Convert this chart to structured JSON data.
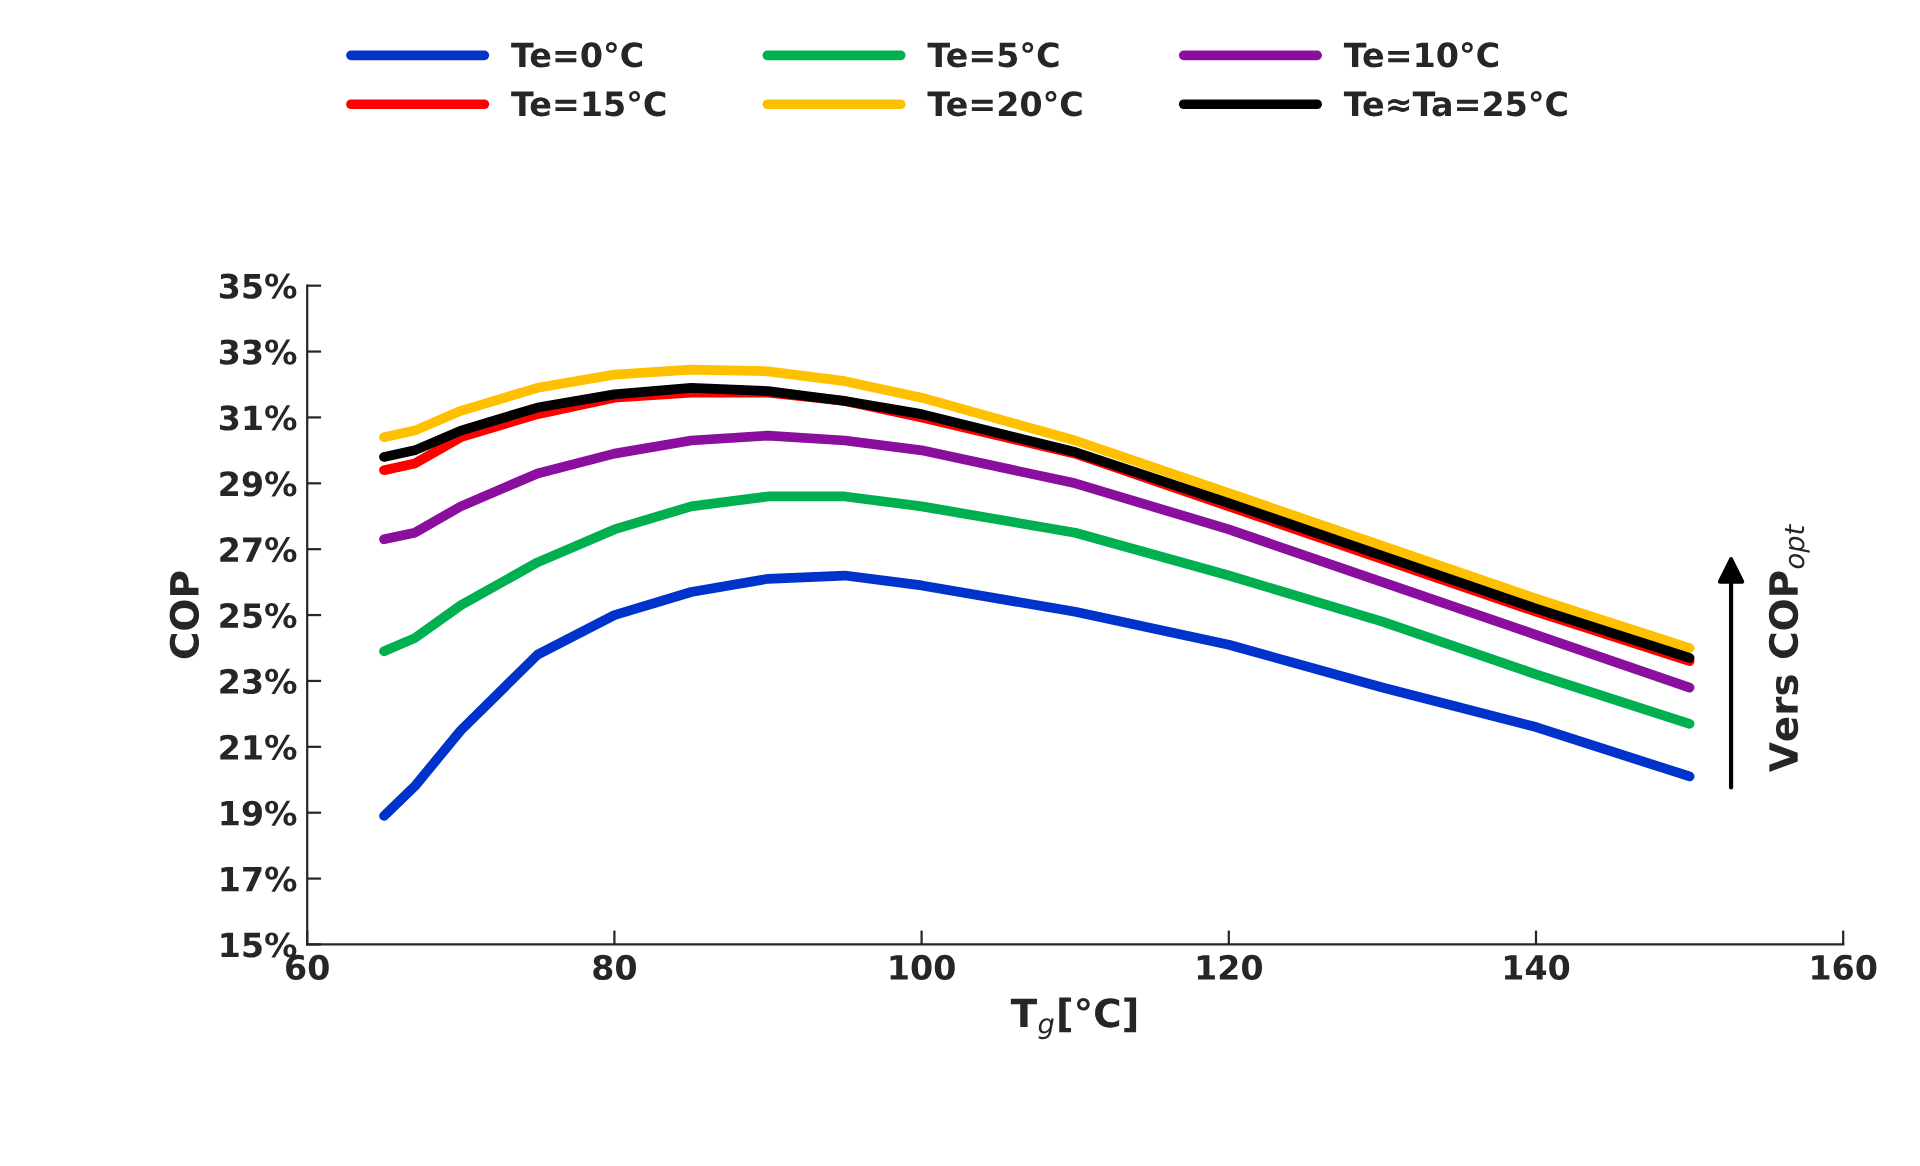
{
  "chart_data": {
    "type": "line",
    "xlabel": "T$_{g}$[°C]",
    "ylabel": "COP",
    "x": [
      65,
      67,
      70,
      75,
      80,
      85,
      90,
      95,
      100,
      110,
      120,
      130,
      140,
      150
    ],
    "series": [
      {
        "name": "Te=0°C",
        "color": "#0033cc",
        "values": [
          18.9,
          19.8,
          21.5,
          23.8,
          25.0,
          25.7,
          26.1,
          26.2,
          25.9,
          25.1,
          24.1,
          22.8,
          21.6,
          20.1
        ]
      },
      {
        "name": "Te=5°C",
        "color": "#00b050",
        "values": [
          23.9,
          24.3,
          25.3,
          26.6,
          27.6,
          28.3,
          28.6,
          28.6,
          28.3,
          27.5,
          26.2,
          24.8,
          23.2,
          21.7
        ]
      },
      {
        "name": "Te=10°C",
        "color": "#8b0f9e",
        "values": [
          27.3,
          27.5,
          28.3,
          29.3,
          29.9,
          30.3,
          30.45,
          30.3,
          30.0,
          29.0,
          27.6,
          26.0,
          24.4,
          22.8
        ]
      },
      {
        "name": "Te=15°C",
        "color": "#ff0000",
        "values": [
          29.4,
          29.6,
          30.4,
          31.1,
          31.6,
          31.75,
          31.75,
          31.5,
          31.0,
          29.9,
          28.3,
          26.7,
          25.1,
          23.6
        ]
      },
      {
        "name": "Te=20°C",
        "color": "#ffc000",
        "values": [
          30.4,
          30.6,
          31.2,
          31.9,
          32.3,
          32.45,
          32.4,
          32.1,
          31.6,
          30.3,
          28.7,
          27.1,
          25.5,
          24.0
        ]
      },
      {
        "name": "Te≈Ta=25°C",
        "color": "#000000",
        "values": [
          29.8,
          30.0,
          30.6,
          31.3,
          31.7,
          31.9,
          31.8,
          31.5,
          31.1,
          29.95,
          28.4,
          26.8,
          25.2,
          23.7
        ]
      }
    ],
    "xlim": [
      60,
      160
    ],
    "xticks": [
      60,
      80,
      100,
      120,
      140,
      160
    ],
    "ylim": [
      15,
      35
    ],
    "yticks": [
      {
        "value": 15,
        "label": "15%"
      },
      {
        "value": 17,
        "label": "17%"
      },
      {
        "value": 19,
        "label": "19%"
      },
      {
        "value": 21,
        "label": "21%"
      },
      {
        "value": 23,
        "label": "23%"
      },
      {
        "value": 25,
        "label": "25%"
      },
      {
        "value": 27,
        "label": "27%"
      },
      {
        "value": 29,
        "label": "29%"
      },
      {
        "value": 31,
        "label": "31%"
      },
      {
        "value": 33,
        "label": "33%"
      },
      {
        "value": 35,
        "label": "35%"
      }
    ],
    "annotations": [
      "Vers COP$_{opt}$"
    ],
    "grid": false,
    "legend": "top",
    "line_style": "solid",
    "marker": "none"
  }
}
